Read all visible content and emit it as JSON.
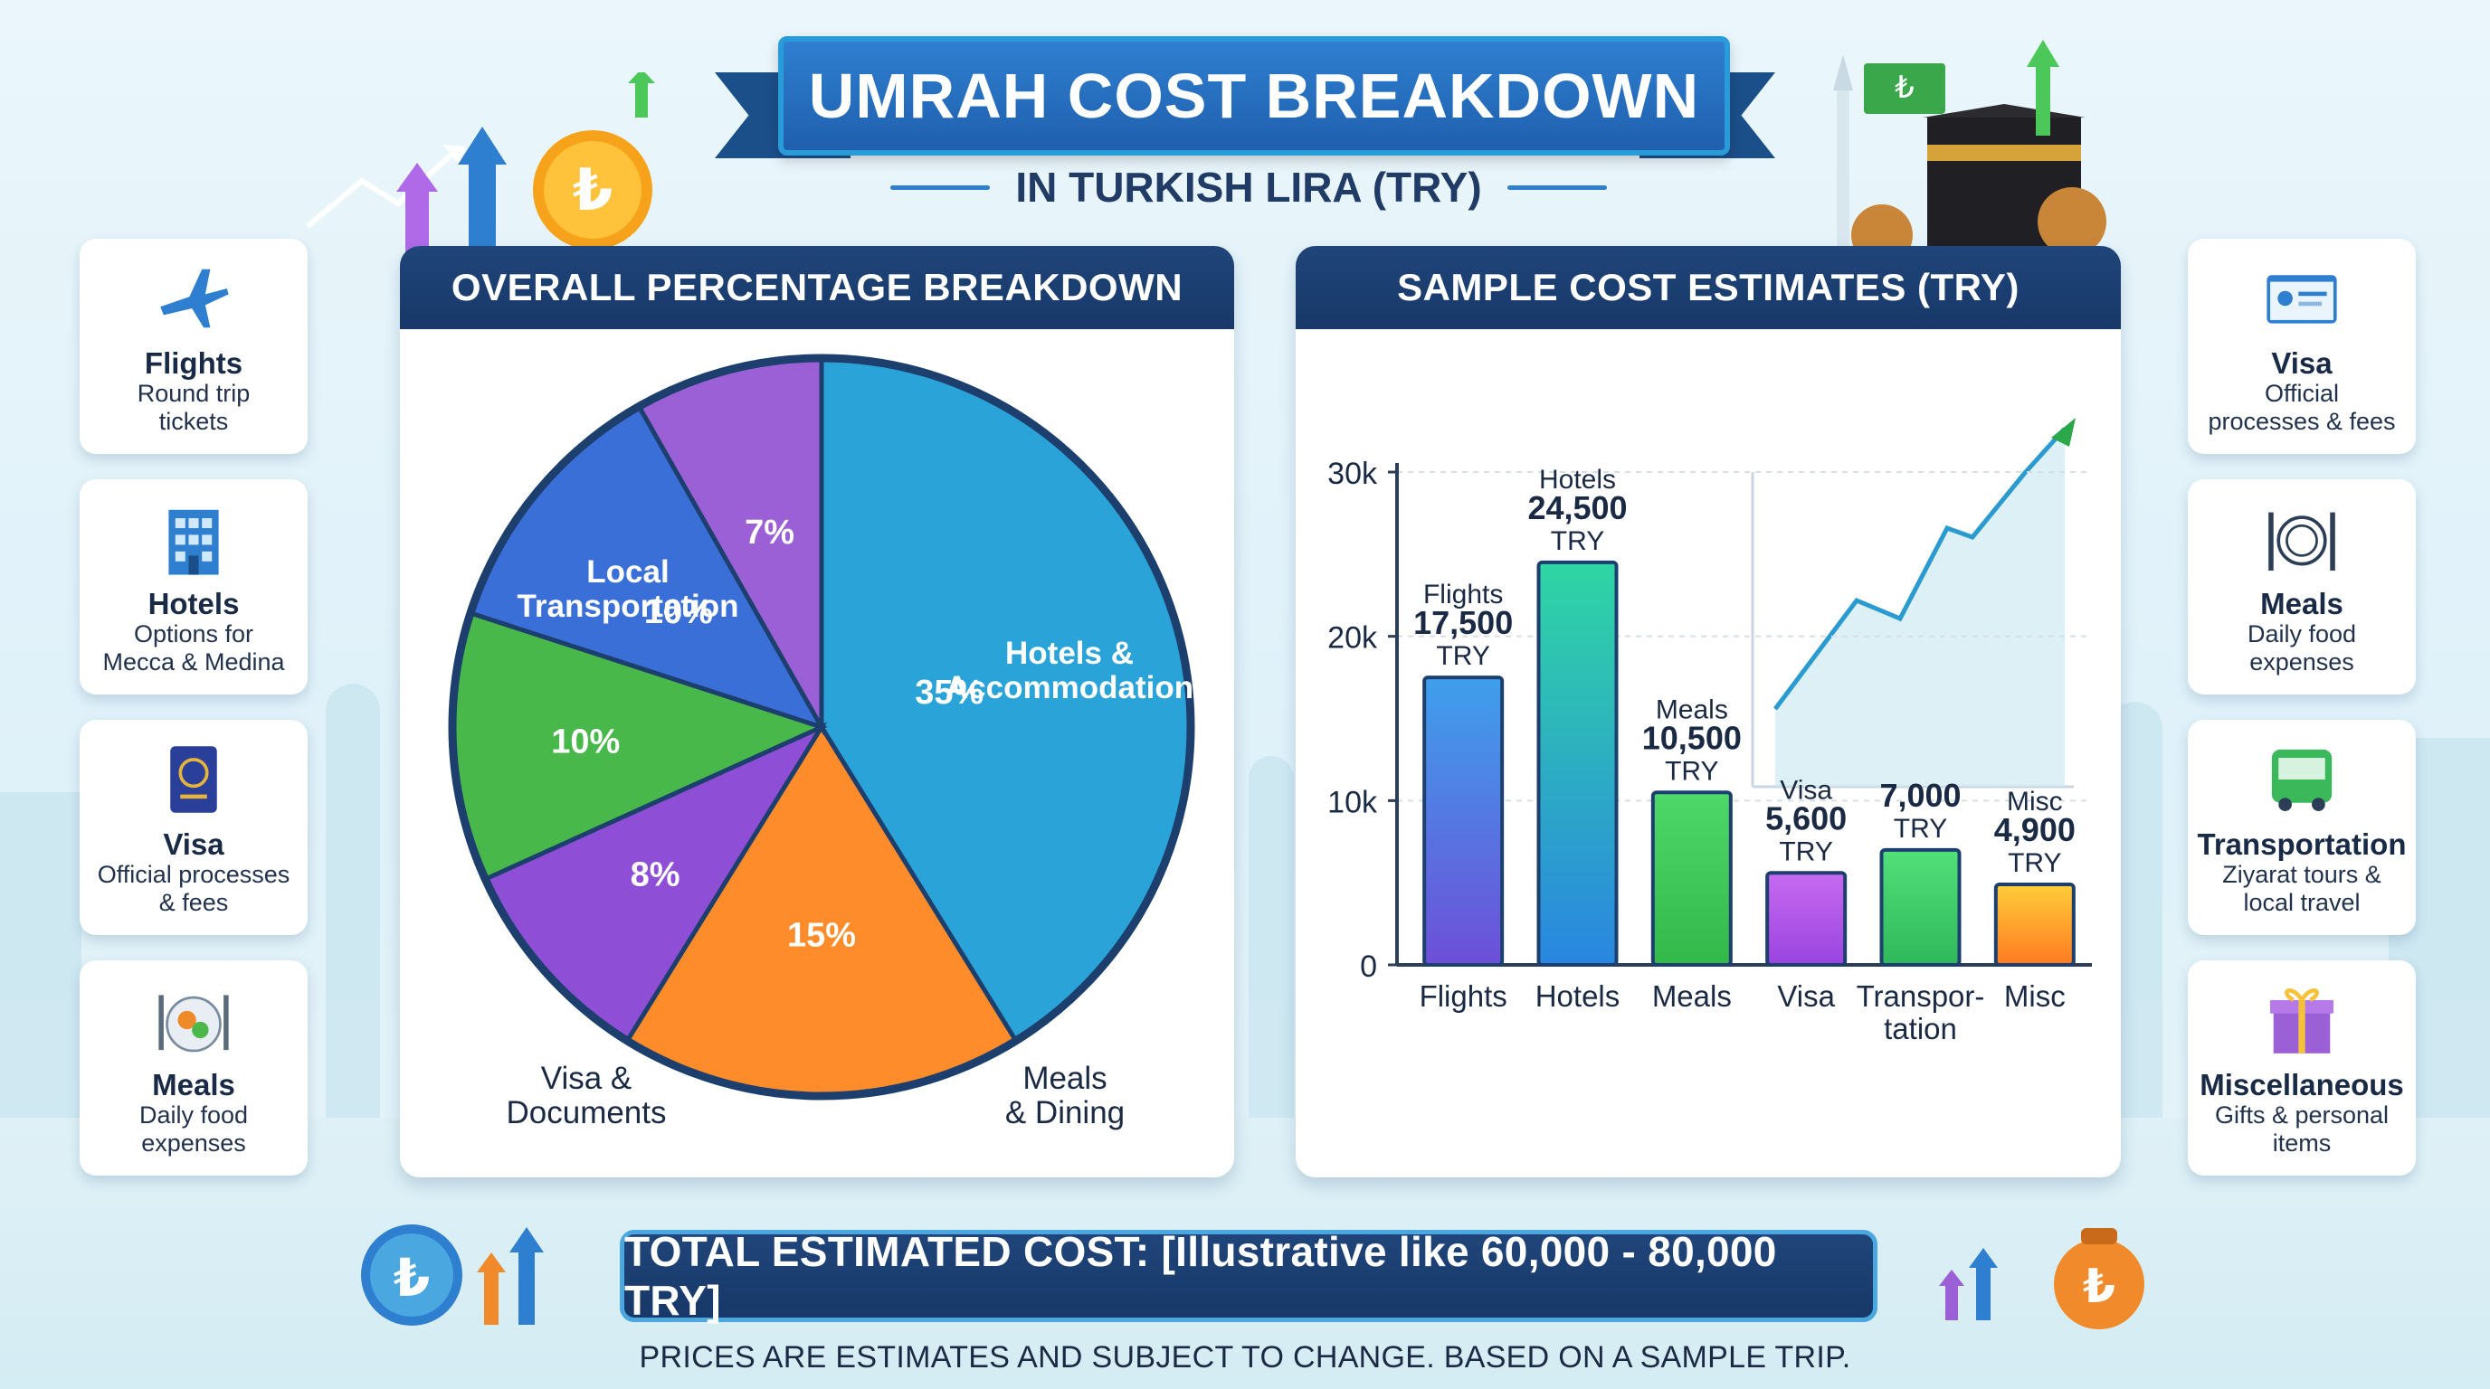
{
  "title": "UMRAH COST BREAKDOWN",
  "subtitle": "IN TURKISH LIRA (TRY)",
  "left_cards": [
    {
      "title": "Flights",
      "desc_lines": [
        "Round trip",
        "tickets"
      ],
      "icon": "airplane-icon"
    },
    {
      "title": "Hotels",
      "desc_lines": [
        "Options for",
        "Mecca & Medina"
      ],
      "icon": "hotel-icon"
    },
    {
      "title": "Visa",
      "desc_lines": [
        "Official processes",
        "& fees"
      ],
      "icon": "passport-icon"
    },
    {
      "title": "Meals",
      "desc_lines": [
        "Daily food",
        "expenses"
      ],
      "icon": "meal-icon"
    }
  ],
  "right_cards": [
    {
      "title": "Visa",
      "desc_lines": [
        "Official",
        "processes & fees"
      ],
      "icon": "id-card-icon"
    },
    {
      "title": "Meals",
      "desc_lines": [
        "Daily food",
        "expenses"
      ],
      "icon": "plate-cutlery-icon"
    },
    {
      "title": "Transportation",
      "desc_lines": [
        "Ziyarat tours &",
        "local travel"
      ],
      "icon": "bus-icon"
    },
    {
      "title": "Miscellaneous",
      "desc_lines": [
        "Gifts & personal",
        "items"
      ],
      "icon": "gift-icon"
    }
  ],
  "pie_panel_title": "OVERALL PERCENTAGE BREAKDOWN",
  "bar_panel_title": "SAMPLE COST ESTIMATES (TRY)",
  "chart_data": [
    {
      "type": "pie",
      "title": "OVERALL PERCENTAGE BREAKDOWN",
      "slices": [
        {
          "label": "Hotels & Accommodation",
          "label_lines": [
            "Hotels &",
            "Accommodation"
          ],
          "value": 35,
          "value_label": "35%",
          "color": "#2aa3d8"
        },
        {
          "label": "Meals & Dining",
          "label_lines": [
            "Meals",
            "& Dining"
          ],
          "value": 15,
          "value_label": "15%",
          "color": "#ff8c2a"
        },
        {
          "label": "Visa & Documents",
          "label_lines": [
            "Visa &",
            "Documents"
          ],
          "value": 8,
          "value_label": "8%",
          "color": "#8e4fd6"
        },
        {
          "label": "",
          "value": 10,
          "value_label": "10%",
          "color": "#48b84a"
        },
        {
          "label": "Local Transportation",
          "label_lines": [
            "Local",
            "Transportation"
          ],
          "value": 10,
          "value_label": "10%",
          "color": "#3b6fd8"
        },
        {
          "label": "",
          "value": 7,
          "value_label": "7%",
          "color": "#9b5fd6"
        }
      ]
    },
    {
      "type": "bar",
      "title": "SAMPLE COST ESTIMATES (TRY)",
      "categories": [
        "Flights",
        "Hotels",
        "Meals",
        "Visa",
        "Transpor-tation",
        "Misc"
      ],
      "category_display": [
        [
          "Flights"
        ],
        [
          "Hotels"
        ],
        [
          "Meals"
        ],
        [
          "Visa"
        ],
        [
          "Transpor-",
          "tation"
        ],
        [
          "Misc"
        ]
      ],
      "values": [
        17500,
        24500,
        10500,
        5600,
        7000,
        4900
      ],
      "value_labels": [
        [
          "Flights",
          "17,500",
          "TRY"
        ],
        [
          "Hotels",
          "24,500",
          "TRY"
        ],
        [
          "Meals",
          "10,500",
          "TRY"
        ],
        [
          "Visa",
          "5,600",
          "TRY"
        ],
        [
          "7,000",
          "TRY"
        ],
        [
          "Misc",
          "4,900",
          "TRY"
        ]
      ],
      "colors": [
        [
          "#3ea0ec",
          "#6d4fd8"
        ],
        [
          "#2fd6a3",
          "#2a86e0"
        ],
        [
          "#4ed86a",
          "#33b84a"
        ],
        [
          "#c66af0",
          "#9a44e0"
        ],
        [
          "#52e07a",
          "#2fb85a"
        ],
        [
          "#ffcd3a",
          "#ff7a22"
        ]
      ],
      "ylim": [
        0,
        30000
      ],
      "yticks": [
        0,
        10000,
        20000,
        30000
      ],
      "ytick_labels": [
        "0",
        "10k",
        "20k",
        "30k"
      ],
      "grid": true
    }
  ],
  "total_text": "TOTAL ESTIMATED COST: [Illustrative like 60,000 - 80,000 TRY]",
  "disclaimer": "PRICES ARE ESTIMATES AND SUBJECT TO CHANGE. BASED ON A SAMPLE TRIP.",
  "colors": {
    "accent": "#1f5fae",
    "panel_header": "#1b3f70",
    "background": "#e3f3f9"
  }
}
